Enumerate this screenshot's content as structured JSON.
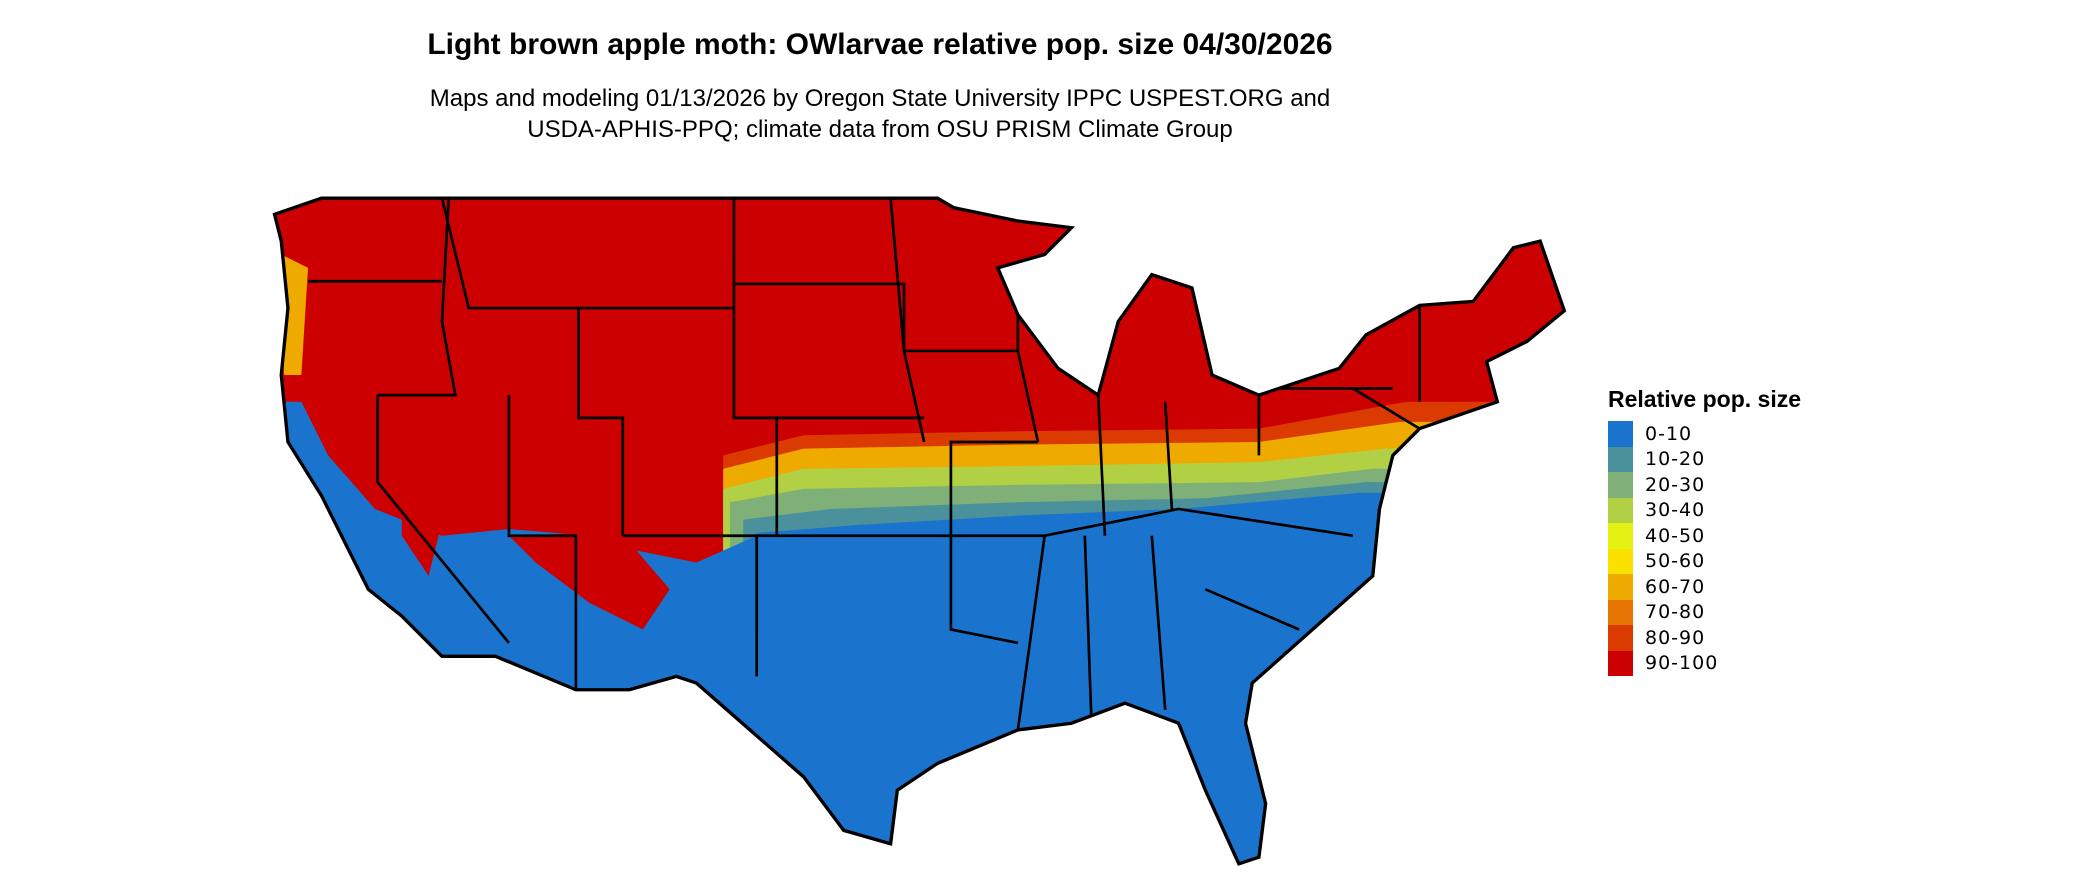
{
  "title": "Light brown apple moth: OWlarvae relative pop. size 04/30/2026",
  "subtitle_line1": "Maps and modeling 01/13/2026 by Oregon State University IPPC USPEST.ORG and",
  "subtitle_line2": "USDA-APHIS-PPQ; climate data from OSU PRISM Climate Group",
  "chart_data": {
    "type": "heatmap",
    "region": "contiguous United States",
    "legend_title": "Relative pop. size",
    "legend_placement": "right",
    "legend": [
      {
        "label": "0-10",
        "color": "#1a73cc"
      },
      {
        "label": "10-20",
        "color": "#4a919b"
      },
      {
        "label": "20-30",
        "color": "#7fb077"
      },
      {
        "label": "30-40",
        "color": "#b2d044"
      },
      {
        "label": "40-50",
        "color": "#e5f013"
      },
      {
        "label": "50-60",
        "color": "#fbe100"
      },
      {
        "label": "60-70",
        "color": "#efaa00"
      },
      {
        "label": "70-80",
        "color": "#e57400"
      },
      {
        "label": "80-90",
        "color": "#db3a00"
      },
      {
        "label": "90-100",
        "color": "#cc0000"
      }
    ]
  }
}
